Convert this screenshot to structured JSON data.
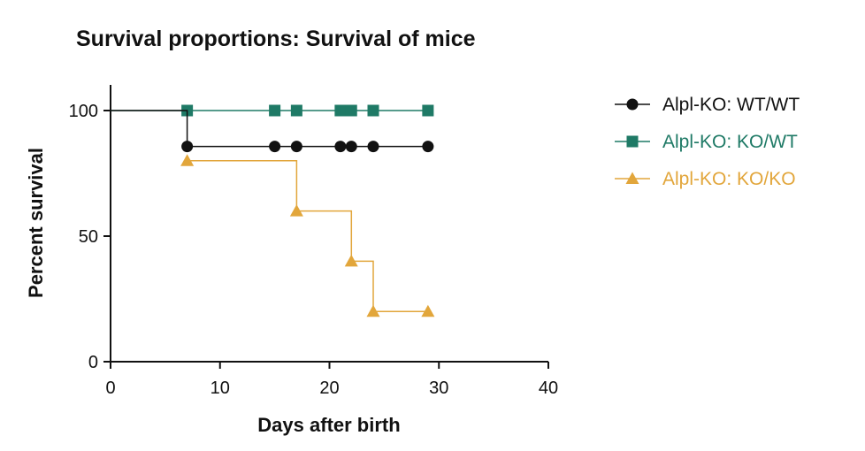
{
  "chart_data": {
    "type": "line",
    "subtype": "kaplan-meier-step",
    "title": "Survival proportions: Survival of mice",
    "xlabel": "Days after birth",
    "ylabel": "Percent survival",
    "xlim": [
      0,
      40
    ],
    "ylim": [
      0,
      100
    ],
    "xticks": [
      0,
      10,
      20,
      30,
      40
    ],
    "yticks": [
      0,
      50,
      100
    ],
    "grid": false,
    "legend_position": "right",
    "series": [
      {
        "name": "Alpl-KO: WT/WT",
        "color": "#111111",
        "marker": "circle",
        "steps": [
          [
            0,
            100
          ],
          [
            7,
            100
          ],
          [
            7,
            85.7
          ],
          [
            29,
            85.7
          ]
        ],
        "markers": [
          [
            7,
            85.7
          ],
          [
            15,
            85.7
          ],
          [
            17,
            85.7
          ],
          [
            21,
            85.7
          ],
          [
            22,
            85.7
          ],
          [
            24,
            85.7
          ],
          [
            29,
            85.7
          ]
        ]
      },
      {
        "name": "Alpl-KO: KO/WT",
        "color": "#1f7a66",
        "marker": "square",
        "steps": [
          [
            0,
            100
          ],
          [
            29,
            100
          ]
        ],
        "markers": [
          [
            7,
            100
          ],
          [
            15,
            100
          ],
          [
            17,
            100
          ],
          [
            21,
            100
          ],
          [
            21.5,
            100
          ],
          [
            22,
            100
          ],
          [
            24,
            100
          ],
          [
            29,
            100
          ]
        ]
      },
      {
        "name": "Alpl-KO: KO/KO",
        "color": "#e2a63b",
        "marker": "triangle",
        "steps": [
          [
            7,
            80
          ],
          [
            17,
            80
          ],
          [
            17,
            60
          ],
          [
            22,
            60
          ],
          [
            22,
            40
          ],
          [
            24,
            40
          ],
          [
            24,
            20
          ],
          [
            29,
            20
          ]
        ],
        "markers": [
          [
            7,
            80
          ],
          [
            17,
            60
          ],
          [
            22,
            40
          ],
          [
            24,
            20
          ],
          [
            29,
            20
          ]
        ]
      }
    ]
  }
}
